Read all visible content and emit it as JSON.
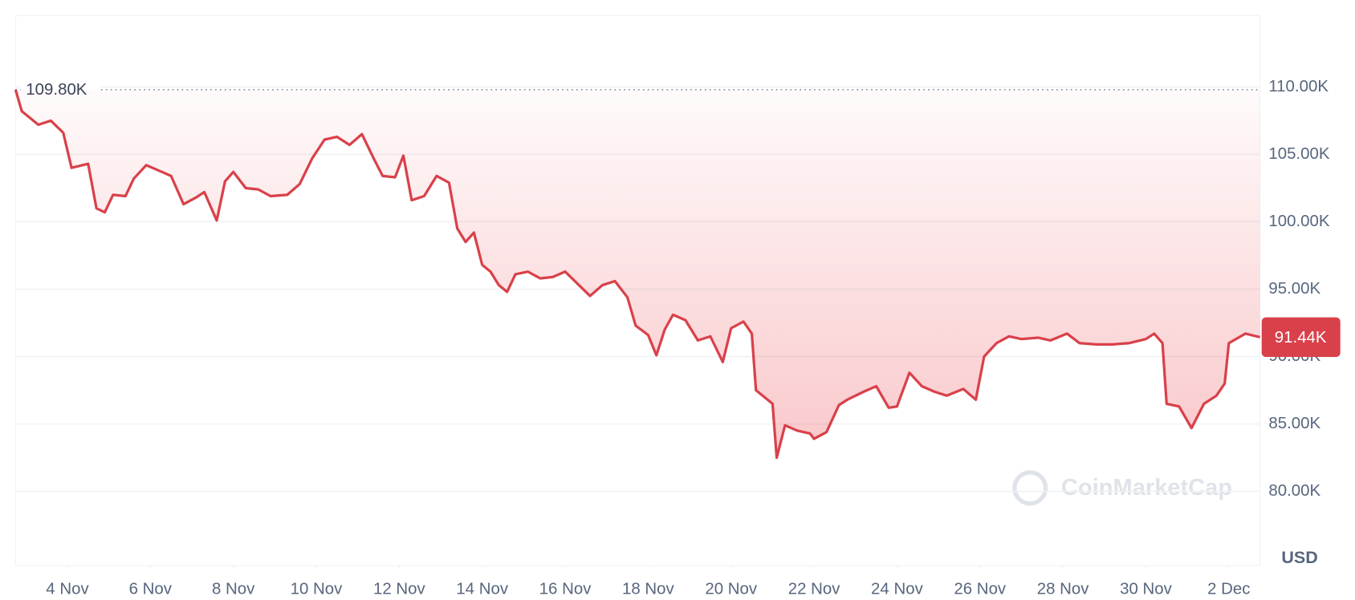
{
  "chart_data": {
    "type": "line",
    "x": [
      2.75,
      2.9,
      3.3,
      3.6,
      3.9,
      4.1,
      4.5,
      4.7,
      4.9,
      5.1,
      5.4,
      5.6,
      5.9,
      6.2,
      6.5,
      6.8,
      7.1,
      7.3,
      7.6,
      7.8,
      8.0,
      8.3,
      8.6,
      8.9,
      9.3,
      9.6,
      9.9,
      10.2,
      10.5,
      10.8,
      11.1,
      11.4,
      11.6,
      11.9,
      12.1,
      12.3,
      12.6,
      12.9,
      13.2,
      13.4,
      13.6,
      13.8,
      14.0,
      14.2,
      14.4,
      14.6,
      14.8,
      15.1,
      15.4,
      15.7,
      16.0,
      16.3,
      16.6,
      16.9,
      17.2,
      17.5,
      17.7,
      18.0,
      18.2,
      18.4,
      18.6,
      18.9,
      19.2,
      19.5,
      19.8,
      20.0,
      20.3,
      20.5,
      20.6,
      20.8,
      21.0,
      21.1,
      21.3,
      21.6,
      21.9,
      22.0,
      22.3,
      22.6,
      22.8,
      23.2,
      23.5,
      23.8,
      24.0,
      24.3,
      24.6,
      24.9,
      25.2,
      25.6,
      25.9,
      26.1,
      26.4,
      26.7,
      27.0,
      27.4,
      27.7,
      28.1,
      28.4,
      28.8,
      29.2,
      29.6,
      30.0,
      30.2,
      30.4,
      30.5,
      30.8,
      31.1,
      31.4,
      31.7,
      31.9,
      32.0,
      32.4,
      32.75
    ],
    "series": [
      {
        "name": "Price",
        "color": "#d9414a",
        "values": [
          109800,
          108200,
          107200,
          107500,
          106600,
          104000,
          104300,
          101000,
          100700,
          102000,
          101900,
          103200,
          104200,
          103800,
          103400,
          101300,
          101800,
          102200,
          100100,
          103000,
          103700,
          102500,
          102400,
          101900,
          102000,
          102800,
          104700,
          106100,
          106300,
          105700,
          106500,
          104600,
          103400,
          103300,
          104900,
          101600,
          101900,
          103400,
          102900,
          99500,
          98500,
          99200,
          96800,
          96300,
          95300,
          94800,
          96100,
          96300,
          95800,
          95900,
          96300,
          95400,
          94500,
          95300,
          95600,
          94400,
          92300,
          91600,
          90100,
          92000,
          93100,
          92700,
          91200,
          91500,
          89600,
          92100,
          92600,
          91700,
          87500,
          87000,
          86500,
          82500,
          84900,
          84500,
          84300,
          83900,
          84400,
          86400,
          86800,
          87400,
          87800,
          86200,
          86300,
          88800,
          87800,
          87400,
          87100,
          87600,
          86800,
          90000,
          91000,
          91500,
          91300,
          91400,
          91200,
          91700,
          91000,
          90900,
          90900,
          91000,
          91300,
          91700,
          91000,
          86500,
          86300,
          84700,
          86500,
          87100,
          88000,
          91000,
          91700,
          91440
        ]
      }
    ],
    "xlim": [
      2.75,
      32.75
    ],
    "xticks": [
      {
        "value": 4,
        "label": "4 Nov"
      },
      {
        "value": 6,
        "label": "6 Nov"
      },
      {
        "value": 8,
        "label": "8 Nov"
      },
      {
        "value": 10,
        "label": "10 Nov"
      },
      {
        "value": 12,
        "label": "12 Nov"
      },
      {
        "value": 14,
        "label": "14 Nov"
      },
      {
        "value": 16,
        "label": "16 Nov"
      },
      {
        "value": 18,
        "label": "18 Nov"
      },
      {
        "value": 20,
        "label": "20 Nov"
      },
      {
        "value": 22,
        "label": "22 Nov"
      },
      {
        "value": 24,
        "label": "24 Nov"
      },
      {
        "value": 26,
        "label": "26 Nov"
      },
      {
        "value": 28,
        "label": "28 Nov"
      },
      {
        "value": 30,
        "label": "30 Nov"
      },
      {
        "value": 32,
        "label": "2 Dec"
      }
    ],
    "ylim": [
      74500,
      115300
    ],
    "yticks": [
      {
        "value": 80000,
        "label": "80.00K"
      },
      {
        "value": 85000,
        "label": "85.00K"
      },
      {
        "value": 90000,
        "label": "90.00K"
      },
      {
        "value": 95000,
        "label": "95.00K"
      },
      {
        "value": 100000,
        "label": "100.00K"
      },
      {
        "value": 105000,
        "label": "105.00K"
      },
      {
        "value": 110000,
        "label": "110.00K"
      }
    ],
    "grid": true,
    "open_label": {
      "value": 109800,
      "label": "109.80K"
    },
    "last_label": {
      "value": 91440,
      "label": "91.44K"
    },
    "unit": "USD",
    "watermark": "CoinMarketCap"
  }
}
